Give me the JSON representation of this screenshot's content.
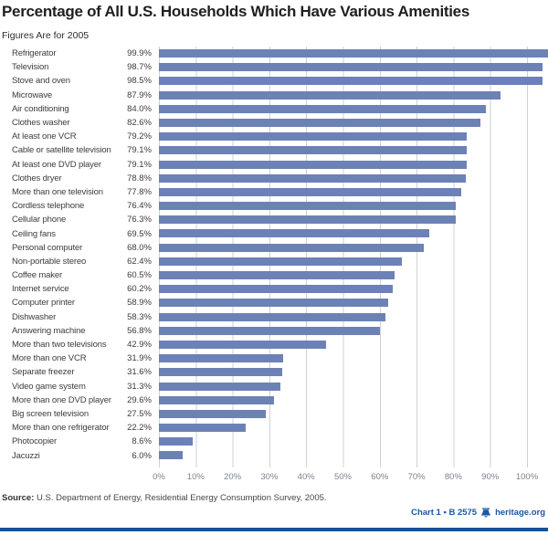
{
  "title": "Percentage of All U.S. Households Which Have Various Amenities",
  "subtitle": "Figures Are for 2005",
  "chart_data": {
    "type": "bar",
    "orientation": "horizontal",
    "title": "Percentage of All U.S. Households Which Have Various Amenities",
    "subtitle": "Figures Are for 2005",
    "xlabel": "",
    "ylabel": "",
    "xlim": [
      0,
      100
    ],
    "grid": true,
    "bar_color": "#6C82B6",
    "categories": [
      "Refrigerator",
      "Television",
      "Stove and oven",
      "Microwave",
      "Air conditioning",
      "Clothes washer",
      "At least one VCR",
      "Cable or satellite television",
      "At least one DVD player",
      "Clothes dryer",
      "More than one television",
      "Cordless telephone",
      "Cellular phone",
      "Ceiling fans",
      "Personal computer",
      "Non-portable stereo",
      "Coffee maker",
      "Internet service",
      "Computer printer",
      "Dishwasher",
      "Answering machine",
      "More than two televisions",
      "More than one VCR",
      "Separate freezer",
      "Video game system",
      "More than one DVD player",
      "Big screen television",
      "More than one refrigerator",
      "Photocopier",
      "Jacuzzi"
    ],
    "values": [
      99.9,
      98.7,
      98.5,
      87.9,
      84.0,
      82.6,
      79.2,
      79.1,
      79.1,
      78.8,
      77.8,
      76.4,
      76.3,
      69.5,
      68.0,
      62.4,
      60.5,
      60.2,
      58.9,
      58.3,
      56.8,
      42.9,
      31.9,
      31.6,
      31.3,
      29.6,
      27.5,
      22.2,
      8.6,
      6.0
    ],
    "value_labels": [
      "99.9%",
      "98.7%",
      "98.5%",
      "87.9%",
      "84.0%",
      "82.6%",
      "79.2%",
      "79.1%",
      "79.1%",
      "78.8%",
      "77.8%",
      "76.4%",
      "76.3%",
      "69.5%",
      "68.0%",
      "62.4%",
      "60.5%",
      "60.2%",
      "58.9%",
      "58.3%",
      "56.8%",
      "42.9%",
      "31.9%",
      "31.6%",
      "31.3%",
      "29.6%",
      "27.5%",
      "22.2%",
      "8.6%",
      "6.0%"
    ],
    "x_ticks": [
      "0%",
      "10%",
      "20%",
      "30%",
      "40%",
      "50%",
      "60%",
      "70%",
      "80%",
      "90%",
      "100%"
    ]
  },
  "footer": {
    "source_label": "Source:",
    "source_text": " U.S. Department of Energy, Residential Energy Consumption Survey, 2005.",
    "chart_ref": "Chart 1 • B 2575",
    "site": "heritage.org",
    "logo": "liberty-bell-icon"
  },
  "colors": {
    "bar": "#6C82B6",
    "gridline": "#CDD1D8",
    "accent_blue": "#1B57A5",
    "bottom_rule_blue": "#17509A",
    "title_text": "#1F1F1F",
    "label_text": "#3D3D3D",
    "axis_text": "#7D838B"
  }
}
